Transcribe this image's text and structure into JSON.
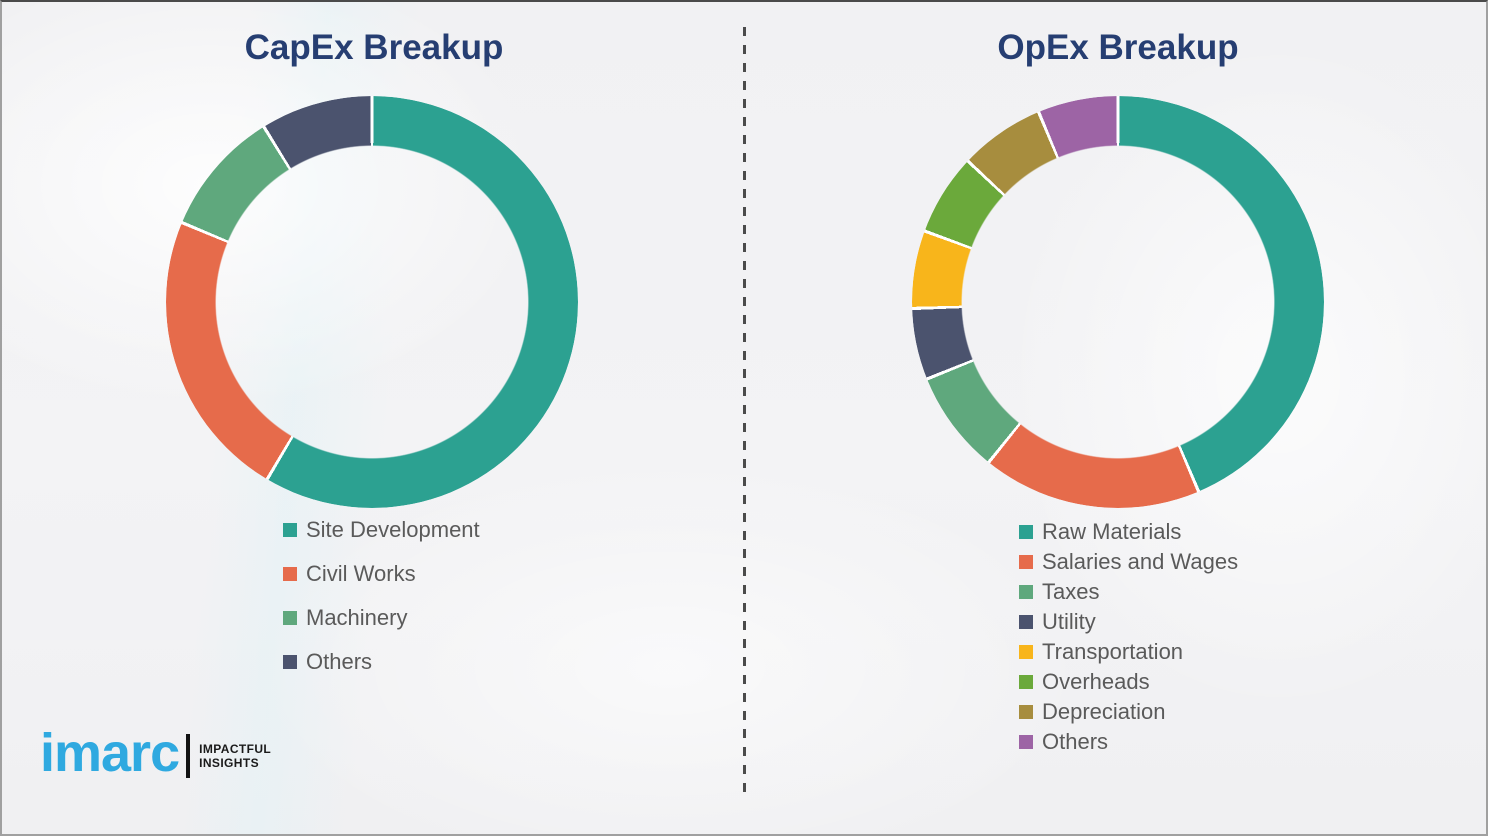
{
  "accents": {
    "title_color": "#263e72",
    "legend_text_color": "#5a5a5a",
    "divider_color": "#4b4b4b"
  },
  "branding": {
    "logo_text": "imarc",
    "tagline_line1": "IMPACTFUL",
    "tagline_line2": "INSIGHTS",
    "logo_color": "#2fa9e0"
  },
  "chart_data": [
    {
      "type": "pie",
      "subtype": "donut",
      "title": "CapEx Breakup",
      "labels": [
        "Site Development",
        "Civil Works",
        "Machinery",
        "Others"
      ],
      "values": [
        58.5,
        22.8,
        9.9,
        8.8
      ],
      "colors": [
        "#2ca191",
        "#e66b4b",
        "#5fa87d",
        "#4b536e"
      ],
      "value_format": "percent, estimated from arc angles (no data labels shown)",
      "start_angle_deg": 0,
      "direction": "clockwise",
      "donut_hole_ratio": 0.76,
      "legend_position": "below"
    },
    {
      "type": "pie",
      "subtype": "donut",
      "title": "OpEx Breakup",
      "labels": [
        "Raw Materials",
        "Salaries and Wages",
        "Taxes",
        "Utility",
        "Transportation",
        "Overheads",
        "Depreciation",
        "Others"
      ],
      "values": [
        43.6,
        17.2,
        8.1,
        5.6,
        6.1,
        6.4,
        6.7,
        6.3
      ],
      "colors": [
        "#2ca191",
        "#e66b4b",
        "#5fa87d",
        "#4b536e",
        "#f8b51b",
        "#6ba93b",
        "#a78d3e",
        "#9d64a5"
      ],
      "value_format": "percent, estimated from arc angles (no data labels shown)",
      "start_angle_deg": 0,
      "direction": "clockwise",
      "donut_hole_ratio": 0.76,
      "legend_position": "below"
    }
  ]
}
